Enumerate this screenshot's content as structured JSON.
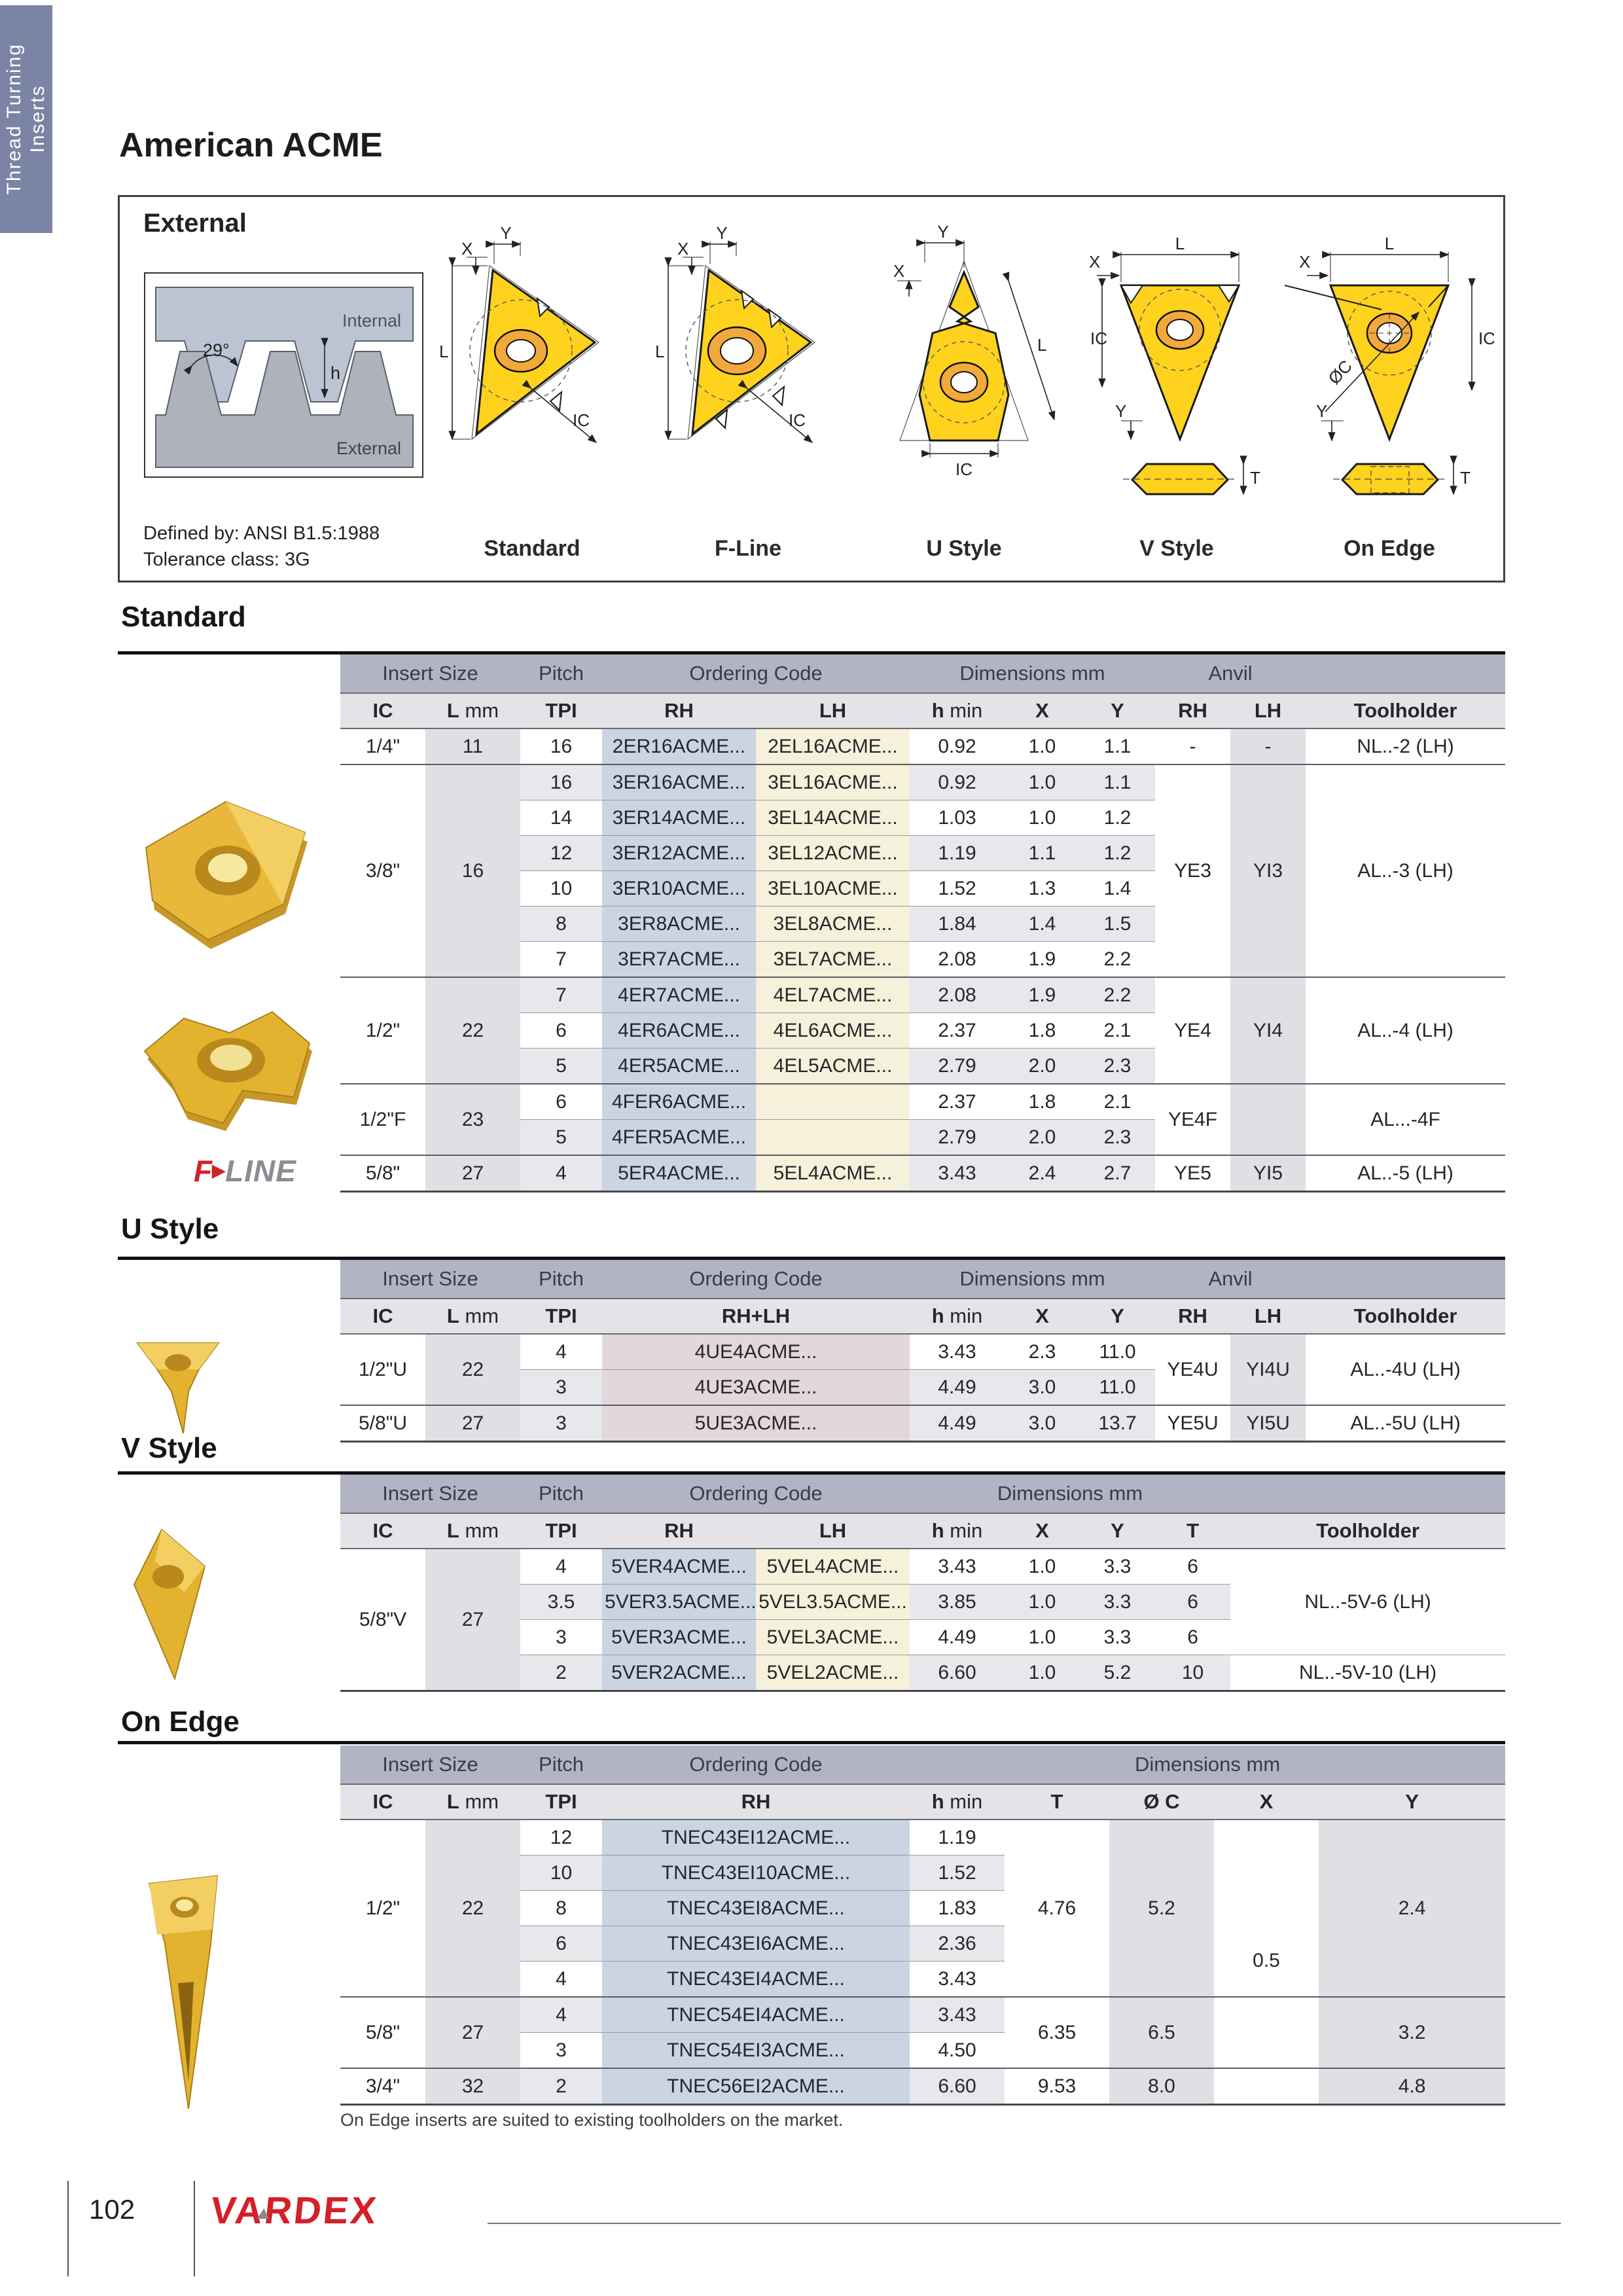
{
  "page": {
    "side_tab": "Thread Turning\nInserts",
    "title": "American ACME",
    "number": "102",
    "brand": "VARDEX",
    "note": "On Edge inserts are suited to existing toolholders on the market."
  },
  "fline_logo": {
    "f": "F",
    "arrow": "▶",
    "rest": "LINE"
  },
  "external_panel": {
    "label": "External",
    "defined_by": "Defined by: ANSI B1.5:1988",
    "tolerance": "Tolerance class: 3G",
    "profile": {
      "angle": "29°",
      "internal": "Internal",
      "external": "External",
      "height": "h"
    },
    "diagrams": [
      {
        "caption": "Standard",
        "dims": [
          "Y",
          "X",
          "L",
          "IC"
        ]
      },
      {
        "caption": "F-Line",
        "dims": [
          "Y",
          "X",
          "L",
          "IC"
        ]
      },
      {
        "caption": "U Style",
        "dims": [
          "Y",
          "X",
          "L",
          "IC"
        ]
      },
      {
        "caption": "V Style",
        "dims": [
          "L",
          "X",
          "IC",
          "Y",
          "T"
        ]
      },
      {
        "caption": "On Edge",
        "dims": [
          "L",
          "X",
          "ØC",
          "IC",
          "Y",
          "T"
        ]
      }
    ]
  },
  "colors": {
    "accent_red": "#d42027",
    "tab_blue": "#7b84a4",
    "header_band": "#b2b4c4",
    "subheader": "#e4e4e8",
    "band_gray": "#dfe0e4",
    "band_blue": "#cbd4e3",
    "band_yellow": "#f5f1da",
    "band_mauve": "#e2d7db",
    "insert_yellow": "#ffd21e",
    "insert_orange": "#f2a93b"
  },
  "tables": {
    "standard": {
      "title": "Standard",
      "bands": [
        "Insert Size",
        "Pitch",
        "Ordering Code",
        "Dimensions mm",
        "Anvil"
      ],
      "sub": [
        "IC",
        "L mm",
        "TPI",
        "RH",
        "LH",
        "h min",
        "X",
        "Y",
        "RH",
        "LH",
        "Toolholder"
      ],
      "groups": [
        {
          "ic": "1/4\"",
          "l": "11",
          "rows": [
            {
              "tpi": "16",
              "rh": "2ER16ACME...",
              "lh": "2EL16ACME...",
              "h": "0.92",
              "x": "1.0",
              "y": "1.1"
            }
          ],
          "anvil_rh": "-",
          "anvil_lh": "-",
          "tool": "NL..-2 (LH)"
        },
        {
          "ic": "3/8\"",
          "l": "16",
          "rows": [
            {
              "tpi": "16",
              "rh": "3ER16ACME...",
              "lh": "3EL16ACME...",
              "h": "0.92",
              "x": "1.0",
              "y": "1.1"
            },
            {
              "tpi": "14",
              "rh": "3ER14ACME...",
              "lh": "3EL14ACME...",
              "h": "1.03",
              "x": "1.0",
              "y": "1.2"
            },
            {
              "tpi": "12",
              "rh": "3ER12ACME...",
              "lh": "3EL12ACME...",
              "h": "1.19",
              "x": "1.1",
              "y": "1.2"
            },
            {
              "tpi": "10",
              "rh": "3ER10ACME...",
              "lh": "3EL10ACME...",
              "h": "1.52",
              "x": "1.3",
              "y": "1.4"
            },
            {
              "tpi": "8",
              "rh": "3ER8ACME...",
              "lh": "3EL8ACME...",
              "h": "1.84",
              "x": "1.4",
              "y": "1.5"
            },
            {
              "tpi": "7",
              "rh": "3ER7ACME...",
              "lh": "3EL7ACME...",
              "h": "2.08",
              "x": "1.9",
              "y": "2.2"
            }
          ],
          "anvil_rh": "YE3",
          "anvil_lh": "YI3",
          "tool": "AL..-3 (LH)"
        },
        {
          "ic": "1/2\"",
          "l": "22",
          "rows": [
            {
              "tpi": "7",
              "rh": "4ER7ACME...",
              "lh": "4EL7ACME...",
              "h": "2.08",
              "x": "1.9",
              "y": "2.2"
            },
            {
              "tpi": "6",
              "rh": "4ER6ACME...",
              "lh": "4EL6ACME...",
              "h": "2.37",
              "x": "1.8",
              "y": "2.1"
            },
            {
              "tpi": "5",
              "rh": "4ER5ACME...",
              "lh": "4EL5ACME...",
              "h": "2.79",
              "x": "2.0",
              "y": "2.3"
            }
          ],
          "anvil_rh": "YE4",
          "anvil_lh": "YI4",
          "tool": "AL..-4 (LH)"
        },
        {
          "ic": "1/2\"F",
          "l": "23",
          "rows": [
            {
              "tpi": "6",
              "rh": "4FER6ACME...",
              "lh": "",
              "h": "2.37",
              "x": "1.8",
              "y": "2.1"
            },
            {
              "tpi": "5",
              "rh": "4FER5ACME...",
              "lh": "",
              "h": "2.79",
              "x": "2.0",
              "y": "2.3"
            }
          ],
          "anvil_rh": "YE4F",
          "anvil_lh": "",
          "tool": "AL...-4F"
        },
        {
          "ic": "5/8\"",
          "l": "27",
          "rows": [
            {
              "tpi": "4",
              "rh": "5ER4ACME...",
              "lh": "5EL4ACME...",
              "h": "3.43",
              "x": "2.4",
              "y": "2.7"
            }
          ],
          "anvil_rh": "YE5",
          "anvil_lh": "YI5",
          "tool": "AL..-5 (LH)"
        }
      ]
    },
    "u_style": {
      "title": "U Style",
      "bands": [
        "Insert Size",
        "Pitch",
        "Ordering Code",
        "Dimensions mm",
        "Anvil"
      ],
      "sub": [
        "IC",
        "L mm",
        "TPI",
        "RH+LH",
        "h min",
        "X",
        "Y",
        "RH",
        "LH",
        "Toolholder"
      ],
      "groups": [
        {
          "ic": "1/2\"U",
          "l": "22",
          "rows": [
            {
              "tpi": "4",
              "code": "4UE4ACME...",
              "h": "3.43",
              "x": "2.3",
              "y": "11.0"
            },
            {
              "tpi": "3",
              "code": "4UE3ACME...",
              "h": "4.49",
              "x": "3.0",
              "y": "11.0"
            }
          ],
          "anvil_rh": "YE4U",
          "anvil_lh": "YI4U",
          "tool": "AL..-4U (LH)"
        },
        {
          "ic": "5/8\"U",
          "l": "27",
          "rows": [
            {
              "tpi": "3",
              "code": "5UE3ACME...",
              "h": "4.49",
              "x": "3.0",
              "y": "13.7"
            }
          ],
          "anvil_rh": "YE5U",
          "anvil_lh": "YI5U",
          "tool": "AL..-5U (LH)"
        }
      ]
    },
    "v_style": {
      "title": "V Style",
      "bands": [
        "Insert Size",
        "Pitch",
        "Ordering Code",
        "Dimensions mm"
      ],
      "sub": [
        "IC",
        "L mm",
        "TPI",
        "RH",
        "LH",
        "h min",
        "X",
        "Y",
        "T",
        "Toolholder"
      ],
      "groups": [
        {
          "ic": "5/8\"V",
          "l": "27",
          "rows": [
            {
              "tpi": "4",
              "rh": "5VER4ACME...",
              "lh": "5VEL4ACME...",
              "h": "3.43",
              "x": "1.0",
              "y": "3.3",
              "t": "6"
            },
            {
              "tpi": "3.5",
              "rh": "5VER3.5ACME...",
              "lh": "5VEL3.5ACME...",
              "h": "3.85",
              "x": "1.0",
              "y": "3.3",
              "t": "6"
            },
            {
              "tpi": "3",
              "rh": "5VER3ACME...",
              "lh": "5VEL3ACME...",
              "h": "4.49",
              "x": "1.0",
              "y": "3.3",
              "t": "6"
            },
            {
              "tpi": "2",
              "rh": "5VER2ACME...",
              "lh": "5VEL2ACME...",
              "h": "6.60",
              "x": "1.0",
              "y": "5.2",
              "t": "10"
            }
          ],
          "tools": [
            {
              "span": 3,
              "v": "NL..-5V-6 (LH)"
            },
            {
              "span": 1,
              "v": "NL..-5V-10 (LH)"
            }
          ]
        }
      ]
    },
    "on_edge": {
      "title": "On Edge",
      "bands": [
        "Insert Size",
        "Pitch",
        "Ordering Code",
        "Dimensions mm"
      ],
      "sub": [
        "IC",
        "L mm",
        "TPI",
        "RH",
        "h min",
        "T",
        "Ø C",
        "X",
        "Y"
      ],
      "groups": [
        {
          "ic": "1/2\"",
          "l": "22",
          "rows": [
            {
              "tpi": "12",
              "rh": "TNEC43EI12ACME...",
              "h": "1.19"
            },
            {
              "tpi": "10",
              "rh": "TNEC43EI10ACME...",
              "h": "1.52"
            },
            {
              "tpi": "8",
              "rh": "TNEC43EI8ACME...",
              "h": "1.83"
            },
            {
              "tpi": "6",
              "rh": "TNEC43EI6ACME...",
              "h": "2.36"
            },
            {
              "tpi": "4",
              "rh": "TNEC43EI4ACME...",
              "h": "3.43"
            }
          ],
          "t": "4.76",
          "oc": "5.2",
          "y": "2.4",
          "x_cells": [
            {
              "span": 3,
              "v": ""
            },
            {
              "span": 2,
              "v": "0.5"
            }
          ]
        },
        {
          "ic": "5/8\"",
          "l": "27",
          "rows": [
            {
              "tpi": "4",
              "rh": "TNEC54EI4ACME...",
              "h": "3.43"
            },
            {
              "tpi": "3",
              "rh": "TNEC54EI3ACME...",
              "h": "4.50"
            }
          ],
          "t": "6.35",
          "oc": "6.5",
          "y": "3.2",
          "x_cells": [
            {
              "span": 2,
              "v": ""
            }
          ]
        },
        {
          "ic": "3/4\"",
          "l": "32",
          "rows": [
            {
              "tpi": "2",
              "rh": "TNEC56EI2ACME...",
              "h": "6.60"
            }
          ],
          "t": "9.53",
          "oc": "8.0",
          "y": "4.8",
          "x_cells": [
            {
              "span": 1,
              "v": ""
            }
          ]
        }
      ]
    }
  }
}
